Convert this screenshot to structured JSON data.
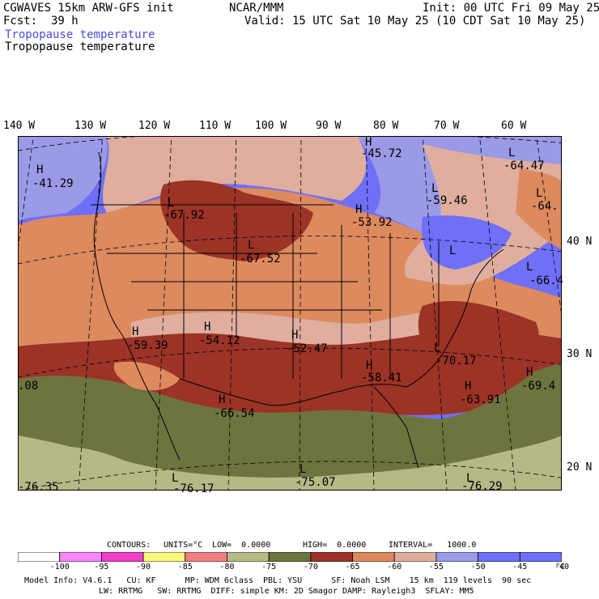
{
  "header": {
    "model": "CGWAVES 15km ARW-GFS init",
    "fcst_label": "Fcst:",
    "fcst_value": "39 h",
    "org": "NCAR/MMM",
    "init": "Init: 00 UTC Fri 09 May 25",
    "valid": "Valid: 15 UTC Sat 10 May 25 (10 CDT Sat 10 May 25)",
    "field1": "Tropopause temperature",
    "field2": "Tropopause temperature",
    "field1_color": "#4b4bd8"
  },
  "lon_labels": [
    "140 W",
    "130 W",
    "120 W",
    "110 W",
    "100 W",
    "90 W",
    "80 W",
    "70 W",
    "60 W"
  ],
  "lat_labels": [
    "40 N",
    "30 N",
    "20 N"
  ],
  "map": {
    "colors": {
      "c1": "#6f6ff8",
      "c2": "#9a9ae6",
      "c3": "#dfae9e",
      "c4": "#dd8a5e",
      "c5": "#9b3326",
      "c6": "#6d7440",
      "c7": "#b5b985"
    },
    "highs": [
      {
        "symbol": "H",
        "value": "-41.29"
      },
      {
        "symbol": "H",
        "value": "-59.39"
      },
      {
        "symbol": "H",
        "value": "-54.12"
      },
      {
        "symbol": "H",
        "value": "-52.47"
      },
      {
        "symbol": "H",
        "value": "-58.41"
      },
      {
        "symbol": "H",
        "value": "-63.91"
      },
      {
        "symbol": "H",
        "value": "-66.54"
      },
      {
        "symbol": "H",
        "value": "-45.72"
      },
      {
        "symbol": "H",
        "value": "-53.92"
      },
      {
        "symbol": "H",
        "value": "-69.4"
      }
    ],
    "lows": [
      {
        "symbol": "L",
        "value": "-67.92"
      },
      {
        "symbol": "L",
        "value": "-67.52"
      },
      {
        "symbol": "L",
        "value": "-59.46"
      },
      {
        "symbol": "L",
        "value": "-64.47"
      },
      {
        "symbol": "L",
        "value": "-64."
      },
      {
        "symbol": "L",
        "value": "-66.4"
      },
      {
        "symbol": "L",
        "value": "-70.17"
      },
      {
        "symbol": "L",
        "value": "-75.07"
      },
      {
        "symbol": "L",
        "value": "-76.17"
      },
      {
        "symbol": "L",
        "value": "-76.29"
      },
      {
        "symbol": "L",
        "value": "-76.35"
      },
      {
        "symbol": "L",
        "value": ""
      }
    ],
    "edge_value": ".08"
  },
  "contours": {
    "title": "CONTOURS:",
    "units": "UNITS=°C",
    "low": "LOW=  0.0000",
    "high": "HIGH=  0.0000",
    "interval": "INTERVAL=   1000.0"
  },
  "legend": {
    "colors": [
      "#ffffff",
      "#f887f8",
      "#f040c8",
      "#f8f880",
      "#f08080",
      "#b9bb85",
      "#6d7440",
      "#9b3326",
      "#dd8a5e",
      "#dfae9e",
      "#9a9ae6",
      "#6f6ff8",
      "#6f6ff8"
    ],
    "labels": [
      "-100",
      "-95",
      "-90",
      "-85",
      "-80",
      "-75",
      "-70",
      "-65",
      "-60",
      "-55",
      "-50",
      "-45",
      "-40"
    ],
    "unit": "°C"
  },
  "footer": {
    "line1": "Model Info: V4.6.1   CU: KF      MP: WDM 6class  PBL: YSU      SF: Noah LSM    15 km  119 levels  90 sec",
    "line2": "LW: RRTMG   SW: RRTMG  DIFF: simple KM: 2D Smagor DAMP: Rayleigh3  SFLAY: MM5"
  }
}
